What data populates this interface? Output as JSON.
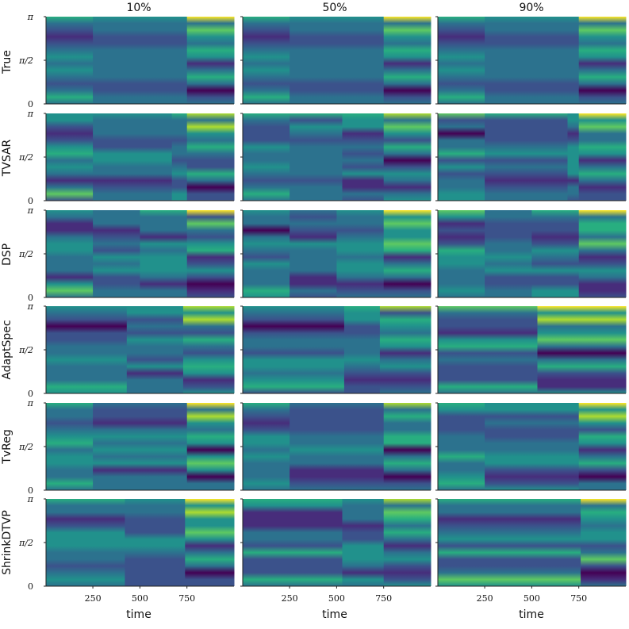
{
  "chart_data": {
    "type": "heatmap",
    "columns": [
      "10%",
      "50%",
      "90%"
    ],
    "rows": [
      "True",
      "TVSAR",
      "DSP",
      "AdaptSpec",
      "TvReg",
      "ShrinkDTVP"
    ],
    "xlabel": "time",
    "x_ticks": [
      "250",
      "500",
      "750"
    ],
    "x_tick_values": [
      250,
      500,
      750
    ],
    "xlim": [
      1,
      1000
    ],
    "y_ticks": [
      "0",
      "π/2",
      "π"
    ],
    "y_tick_values": [
      0,
      1.5708,
      3.1416
    ],
    "ylim": [
      0,
      3.1416
    ],
    "colormap": "viridis",
    "segments": [
      {
        "name": "True",
        "breaks": [
          [
            250,
            750
          ],
          [
            250,
            750
          ],
          [
            250,
            750
          ]
        ]
      },
      {
        "name": "TVSAR",
        "breaks": [
          [
            250,
            670,
            750
          ],
          [
            250,
            530,
            750
          ],
          [
            250,
            690,
            750
          ]
        ]
      },
      {
        "name": "DSP",
        "breaks": [
          [
            250,
            500,
            750
          ],
          [
            250,
            500,
            750
          ],
          [
            250,
            500,
            750
          ]
        ]
      },
      {
        "name": "AdaptSpec",
        "breaks": [
          [
            430,
            730
          ],
          [
            540,
            730
          ],
          [
            530
          ]
        ]
      },
      {
        "name": "TvReg",
        "breaks": [
          [
            250,
            750
          ],
          [
            250,
            750
          ],
          [
            250,
            750
          ]
        ]
      },
      {
        "name": "ShrinkDTVP",
        "breaks": [
          [
            420,
            740
          ],
          [
            530,
            750
          ],
          [
            760
          ]
        ]
      }
    ]
  },
  "colors": {
    "viridis": [
      "#440154",
      "#472d7b",
      "#3b528b",
      "#2c728e",
      "#21918c",
      "#28ae80",
      "#5ec962",
      "#addc30",
      "#fde725"
    ]
  }
}
